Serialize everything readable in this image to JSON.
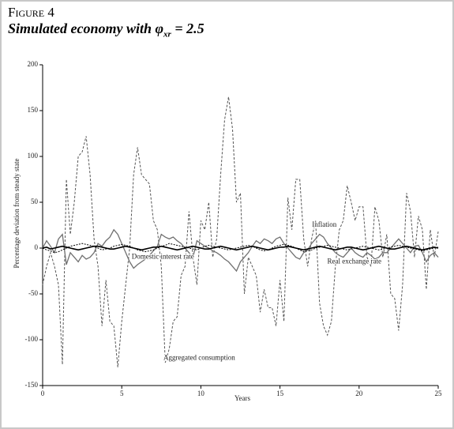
{
  "chart_data": {
    "type": "line",
    "title": "Figure 4",
    "subtitle_parts": [
      "Simulated economy with φ",
      "xr",
      " = 2.5"
    ],
    "xlabel": "Years",
    "ylabel": "Percentage deviation from steady state",
    "x": [
      0,
      0.25,
      0.5,
      0.75,
      1,
      1.25,
      1.5,
      1.75,
      2,
      2.25,
      2.5,
      2.75,
      3,
      3.25,
      3.5,
      3.75,
      4,
      4.25,
      4.5,
      4.75,
      5,
      5.25,
      5.5,
      5.75,
      6,
      6.25,
      6.5,
      6.75,
      7,
      7.25,
      7.5,
      7.75,
      8,
      8.25,
      8.5,
      8.75,
      9,
      9.25,
      9.5,
      9.75,
      10,
      10.25,
      10.5,
      10.75,
      11,
      11.25,
      11.5,
      11.75,
      12,
      12.25,
      12.5,
      12.75,
      13,
      13.25,
      13.5,
      13.75,
      14,
      14.25,
      14.5,
      14.75,
      15,
      15.25,
      15.5,
      15.75,
      16,
      16.25,
      16.5,
      16.75,
      17,
      17.25,
      17.5,
      17.75,
      18,
      18.25,
      18.5,
      18.75,
      19,
      19.25,
      19.5,
      19.75,
      20,
      20.25,
      20.5,
      20.75,
      21,
      21.25,
      21.5,
      21.75,
      22,
      22.25,
      22.5,
      22.75,
      23,
      23.25,
      23.5,
      23.75,
      24,
      24.25,
      24.5,
      24.75,
      25
    ],
    "series": [
      {
        "name": "Aggregated consumption",
        "color": "#555555",
        "dash": "3,2",
        "width": 1,
        "values": [
          -40,
          -20,
          -5,
          -20,
          -40,
          -127,
          75,
          15,
          50,
          100,
          105,
          122,
          80,
          10,
          -20,
          -85,
          -35,
          -80,
          -85,
          -130,
          -80,
          -40,
          0,
          80,
          110,
          80,
          75,
          70,
          30,
          20,
          -20,
          -125,
          -110,
          -80,
          -75,
          -30,
          -20,
          40,
          -10,
          -40,
          30,
          20,
          50,
          -10,
          10,
          80,
          140,
          165,
          130,
          50,
          60,
          -50,
          -10,
          -20,
          -30,
          -70,
          -45,
          -65,
          -65,
          -85,
          -35,
          -80,
          55,
          20,
          75,
          75,
          10,
          -20,
          10,
          30,
          -60,
          -85,
          -95,
          -80,
          -20,
          20,
          30,
          68,
          50,
          30,
          45,
          45,
          -10,
          -20,
          45,
          30,
          -10,
          15,
          -50,
          -55,
          -90,
          -40,
          60,
          40,
          -10,
          35,
          20,
          -45,
          20,
          -10,
          18
        ]
      },
      {
        "name": "Inflation",
        "color": "#707070",
        "dash": "none",
        "width": 1.3,
        "values": [
          0,
          8,
          2,
          -5,
          10,
          15,
          -18,
          -5,
          -10,
          -15,
          -8,
          -12,
          -10,
          -5,
          5,
          2,
          8,
          12,
          20,
          15,
          5,
          -5,
          -15,
          -22,
          -18,
          -15,
          -12,
          -8,
          -3,
          2,
          15,
          12,
          10,
          12,
          8,
          5,
          0,
          -5,
          -10,
          8,
          5,
          2,
          0,
          -3,
          -5,
          -8,
          -12,
          -15,
          -20,
          -25,
          -15,
          -10,
          -5,
          2,
          8,
          5,
          10,
          8,
          5,
          10,
          12,
          5,
          0,
          -5,
          -10,
          -12,
          -5,
          -2,
          5,
          10,
          15,
          12,
          5,
          0,
          -5,
          -8,
          -10,
          -5,
          0,
          -5,
          -8,
          -10,
          -5,
          -8,
          -12,
          -10,
          -5,
          -5,
          0,
          5,
          10,
          5,
          0,
          -5,
          2,
          3,
          -5,
          -15,
          -8,
          -5,
          -10
        ]
      },
      {
        "name": "Domestic interest rate",
        "color": "#000000",
        "dash": "2,1.5",
        "width": 1,
        "values": [
          0,
          -2,
          -3,
          -5,
          -4,
          -2,
          0,
          2,
          3,
          4,
          5,
          4,
          3,
          2,
          0,
          -2,
          -1,
          0,
          2,
          3,
          4,
          3,
          2,
          0,
          -2,
          -3,
          -4,
          -3,
          -2,
          0,
          2,
          3,
          5,
          4,
          3,
          2,
          1,
          0,
          -1,
          -2,
          0,
          2,
          3,
          2,
          1,
          0,
          -1,
          -2,
          -1,
          0,
          1,
          2,
          3,
          2,
          0,
          -2,
          -3,
          -2,
          0,
          2,
          3,
          4,
          3,
          2,
          0,
          -2,
          -4,
          -3,
          -2,
          0,
          1,
          2,
          3,
          2,
          1,
          0,
          -1,
          -2,
          -1,
          0,
          1,
          2,
          1,
          0,
          -1,
          -2,
          -1,
          0,
          1,
          2,
          3,
          2,
          1,
          0,
          -1,
          -2,
          -3,
          -2,
          -1,
          0,
          1
        ]
      },
      {
        "name": "Real exchange rate",
        "color": "#000000",
        "dash": "none",
        "width": 1.6,
        "values": [
          0,
          1,
          -1,
          0,
          1,
          2,
          1,
          0,
          -1,
          -2,
          -1,
          0,
          1,
          2,
          2,
          1,
          0,
          -1,
          -1,
          0,
          1,
          2,
          1,
          0,
          -1,
          -2,
          -1,
          0,
          1,
          1,
          2,
          1,
          0,
          -1,
          -2,
          -1,
          0,
          1,
          2,
          1,
          0,
          -1,
          -1,
          0,
          1,
          2,
          1,
          0,
          -1,
          -2,
          -1,
          0,
          1,
          2,
          1,
          0,
          -1,
          -2,
          -1,
          0,
          1,
          1,
          2,
          1,
          0,
          -1,
          -2,
          -1,
          0,
          1,
          2,
          1,
          0,
          -1,
          -2,
          -1,
          0,
          1,
          1,
          0,
          -1,
          -2,
          -1,
          0,
          1,
          2,
          1,
          0,
          -1,
          -1,
          0,
          1,
          2,
          1,
          0,
          -1,
          -2,
          -1,
          0,
          1,
          0
        ]
      }
    ],
    "annotations": [
      "Inflation",
      "Domestic interest rate",
      "Real exchange rate",
      "Aggregated consumption"
    ],
    "xlim": [
      0,
      25
    ],
    "xticks": [
      0,
      5,
      10,
      15,
      20,
      25
    ],
    "ylim": [
      -150,
      200
    ],
    "yticks": [
      -150,
      -100,
      -50,
      0,
      50,
      100,
      150,
      200
    ]
  }
}
